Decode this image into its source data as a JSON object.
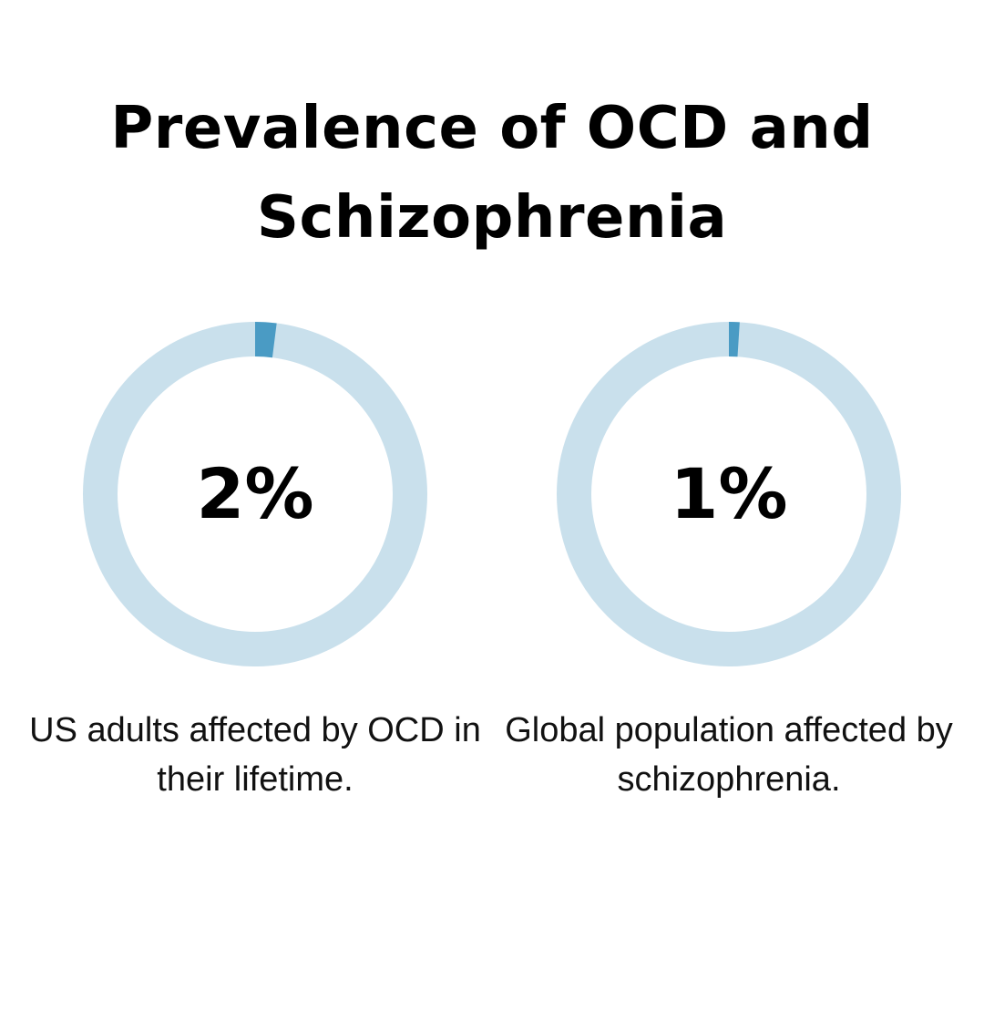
{
  "title": "Prevalence of OCD and Schizophrenia",
  "colors": {
    "track": "#c9e0ec",
    "fill": "#4a9bc4",
    "text": "#000000"
  },
  "chart_data": [
    {
      "type": "pie",
      "value": 2,
      "max": 100,
      "label": "2%",
      "caption": "US adults affected by OCD in their lifetime."
    },
    {
      "type": "pie",
      "value": 1,
      "max": 100,
      "label": "1%",
      "caption": "Global population affected by schizophrenia."
    }
  ]
}
